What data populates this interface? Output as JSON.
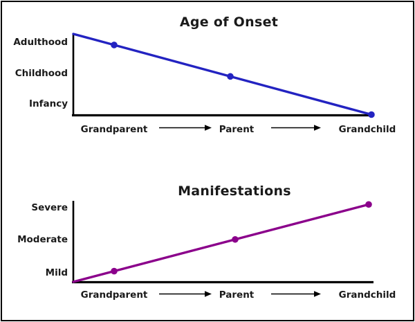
{
  "figure": {
    "background": "#ffffff",
    "border_color": "#000000",
    "text_color": "#1a1a1a"
  },
  "chart_data": [
    {
      "type": "line",
      "title": "Age of Onset",
      "title_color": "#32329B",
      "line_color": "#2323C1",
      "point_color": "#2323C1",
      "categories": [
        "Grandparent",
        "Parent",
        "Grandchild"
      ],
      "category_separator": "arrow",
      "y_tick_labels": [
        "Adulthood",
        "Childhood",
        "Infancy"
      ],
      "series": [
        {
          "name": "Age of Onset",
          "values": [
            "Adulthood",
            "Childhood",
            "Infancy"
          ],
          "values_ordinal": [
            3,
            2,
            1
          ]
        }
      ],
      "trend": "decreasing",
      "xlabel": "",
      "ylabel": "",
      "grid": false,
      "legend": false
    },
    {
      "type": "line",
      "title": "Manifestations",
      "title_color": "#800080",
      "line_color": "#8B008B",
      "point_color": "#8B008B",
      "categories": [
        "Grandparent",
        "Parent",
        "Grandchild"
      ],
      "category_separator": "arrow",
      "y_tick_labels": [
        "Severe",
        "Moderate",
        "Mild"
      ],
      "series": [
        {
          "name": "Manifestations",
          "values": [
            "Mild",
            "Moderate",
            "Severe"
          ],
          "values_ordinal": [
            1,
            2,
            3
          ]
        }
      ],
      "trend": "increasing",
      "xlabel": "",
      "ylabel": "",
      "grid": false,
      "legend": false
    }
  ]
}
